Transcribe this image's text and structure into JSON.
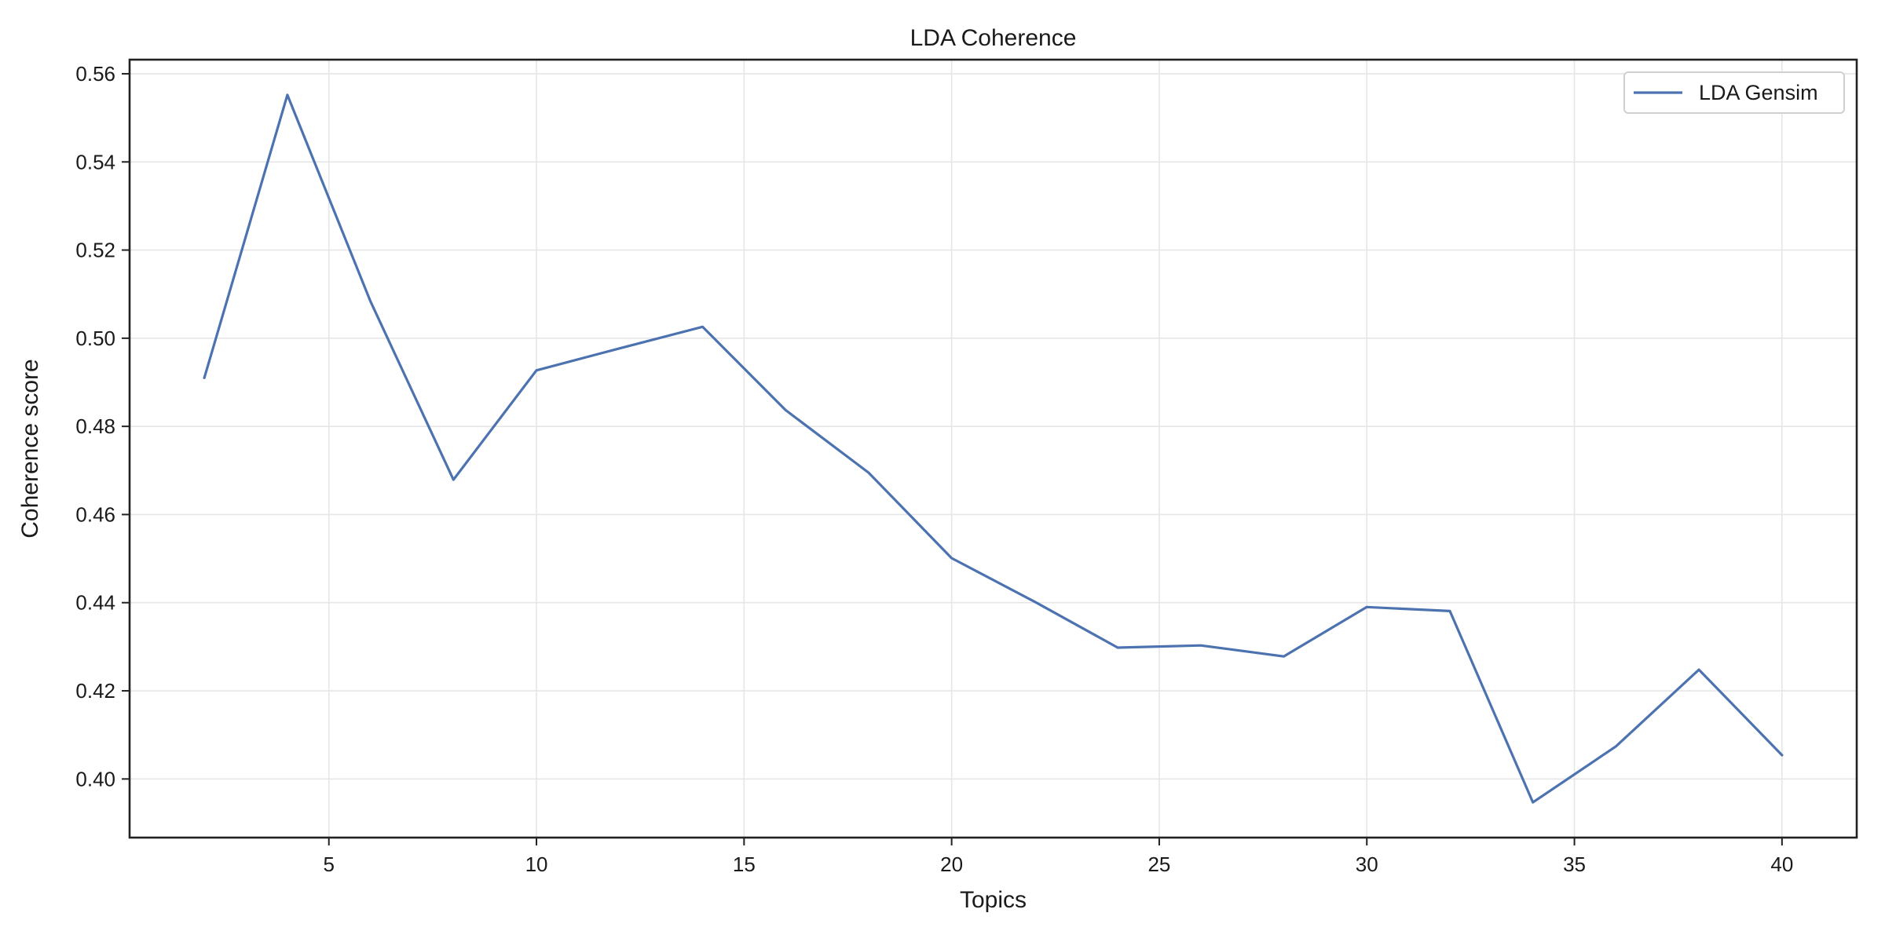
{
  "chart_data": {
    "type": "line",
    "title": "LDA Coherence",
    "xlabel": "Topics",
    "ylabel": "Coherence score",
    "xlim": [
      0.2,
      41.8
    ],
    "ylim": [
      0.3867,
      0.5632
    ],
    "xticks": [
      5,
      10,
      15,
      20,
      25,
      30,
      35,
      40
    ],
    "yticks": [
      0.4,
      0.42,
      0.44,
      0.46,
      0.48,
      0.5,
      0.52,
      0.54,
      0.56
    ],
    "ytick_labels": [
      "0.40",
      "0.42",
      "0.44",
      "0.46",
      "0.48",
      "0.50",
      "0.52",
      "0.54",
      "0.56"
    ],
    "grid": true,
    "legend_position": "top-right",
    "series": [
      {
        "name": "LDA Gensim",
        "color": "#4c72b0",
        "x": [
          2,
          4,
          6,
          8,
          10,
          12,
          14,
          16,
          18,
          20,
          22,
          24,
          26,
          28,
          30,
          32,
          34,
          36,
          38,
          40
        ],
        "y": [
          0.491,
          0.5552,
          0.5084,
          0.4679,
          0.4927,
          0.4977,
          0.5026,
          0.4837,
          0.4695,
          0.4501,
          0.4402,
          0.4298,
          0.4303,
          0.4278,
          0.439,
          0.4381,
          0.3947,
          0.4074,
          0.4248,
          0.4054
        ]
      }
    ]
  }
}
